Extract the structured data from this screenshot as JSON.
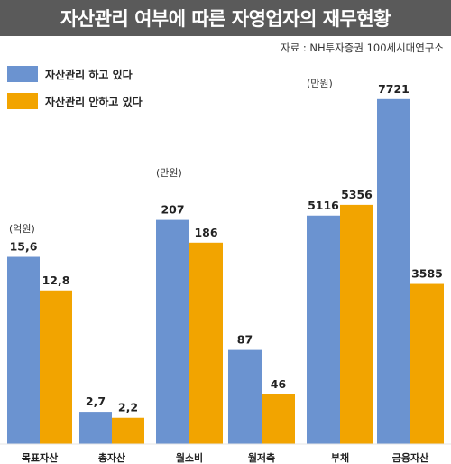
{
  "title": "자산관리 여부에 따른 자영업자의 재무현황",
  "source": "자료 : NH투자증권 100세시대연구소",
  "colors": {
    "managed": "#6b93d0",
    "unmanaged": "#f2a400",
    "title_bg": "#5a5a5a"
  },
  "legend": [
    {
      "label": "자산관리 하고 있다",
      "color": "#6b93d0"
    },
    {
      "label": "자산관리 안하고 있다",
      "color": "#f2a400"
    }
  ],
  "chart_data": [
    {
      "type": "bar",
      "unit": "(억원)",
      "categories": [
        "목표자산",
        "총자산"
      ],
      "series": [
        {
          "name": "자산관리 하고 있다",
          "values": [
            15.6,
            2.7
          ],
          "labels": [
            "15,6",
            "2,7"
          ]
        },
        {
          "name": "자산관리 안하고 있다",
          "values": [
            12.8,
            2.2
          ],
          "labels": [
            "12,8",
            "2,2"
          ]
        }
      ]
    },
    {
      "type": "bar",
      "unit": "(만원)",
      "categories": [
        "월소비",
        "월저축"
      ],
      "series": [
        {
          "name": "자산관리 하고 있다",
          "values": [
            207,
            87
          ],
          "labels": [
            "207",
            "87"
          ]
        },
        {
          "name": "자산관리 안하고 있다",
          "values": [
            186,
            46
          ],
          "labels": [
            "186",
            "46"
          ]
        }
      ]
    },
    {
      "type": "bar",
      "unit": "(만원)",
      "categories": [
        "부채",
        "금융자산"
      ],
      "series": [
        {
          "name": "자산관리 하고 있다",
          "values": [
            5116,
            7721
          ],
          "labels": [
            "5116",
            "7721"
          ]
        },
        {
          "name": "자산관리 안하고 있다",
          "values": [
            5356,
            3585
          ],
          "labels": [
            "5356",
            "3585"
          ]
        }
      ]
    }
  ]
}
